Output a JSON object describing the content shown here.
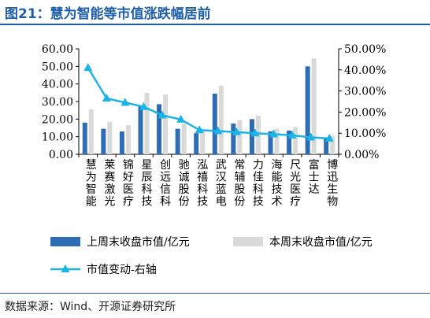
{
  "title": "图21：慧为智能等市值涨跌幅居前",
  "source": "数据来源：Wind、开源证券研究所",
  "colors": {
    "title_blue": "#1f5fa8",
    "bar_last": "#2e6db4",
    "bar_this": "#d9d9d9",
    "line": "#1ab4e6"
  },
  "chart_data": {
    "type": "bar",
    "categories": [
      "慧为智能",
      "莱赛激光",
      "锦好医疗",
      "星辰科技",
      "创远信科",
      "驰诚股份",
      "泓禧科技",
      "武汉蓝电",
      "常辅股份",
      "力佳科技",
      "海能技术",
      "尺光医疗",
      "富士达",
      "博迅生物"
    ],
    "series": [
      {
        "name": "上周末收盘市值/亿元",
        "axis": "left",
        "values": [
          18.0,
          14.5,
          13.0,
          27.5,
          28.5,
          14.5,
          12.0,
          34.5,
          17.5,
          20.0,
          13.0,
          13.5,
          50.0,
          9.5
        ]
      },
      {
        "name": "本周末收盘市值/亿元",
        "axis": "left",
        "values": [
          25.5,
          18.5,
          16.5,
          35.0,
          34.0,
          17.5,
          13.5,
          39.0,
          19.5,
          22.0,
          14.5,
          15.5,
          54.5,
          10.5
        ]
      },
      {
        "name": "市值变动-右轴",
        "axis": "right",
        "type": "line",
        "values": [
          41.0,
          26.5,
          24.5,
          22.5,
          18.5,
          16.5,
          11.5,
          11.0,
          10.5,
          10.0,
          9.5,
          9.0,
          8.0,
          7.5
        ]
      }
    ],
    "left_axis": {
      "min": 0,
      "max": 60,
      "ticks": [
        "0.00",
        "10.00",
        "20.00",
        "30.00",
        "40.00",
        "50.00",
        "60.00"
      ]
    },
    "right_axis": {
      "min": 0,
      "max": 50,
      "ticks": [
        "0.00%",
        "10.00%",
        "20.00%",
        "30.00%",
        "40.00%",
        "50.00%"
      ]
    },
    "legend": [
      "上周末收盘市值/亿元",
      "本周末收盘市值/亿元",
      "市值变动-右轴"
    ],
    "legend_position": "bottom"
  }
}
